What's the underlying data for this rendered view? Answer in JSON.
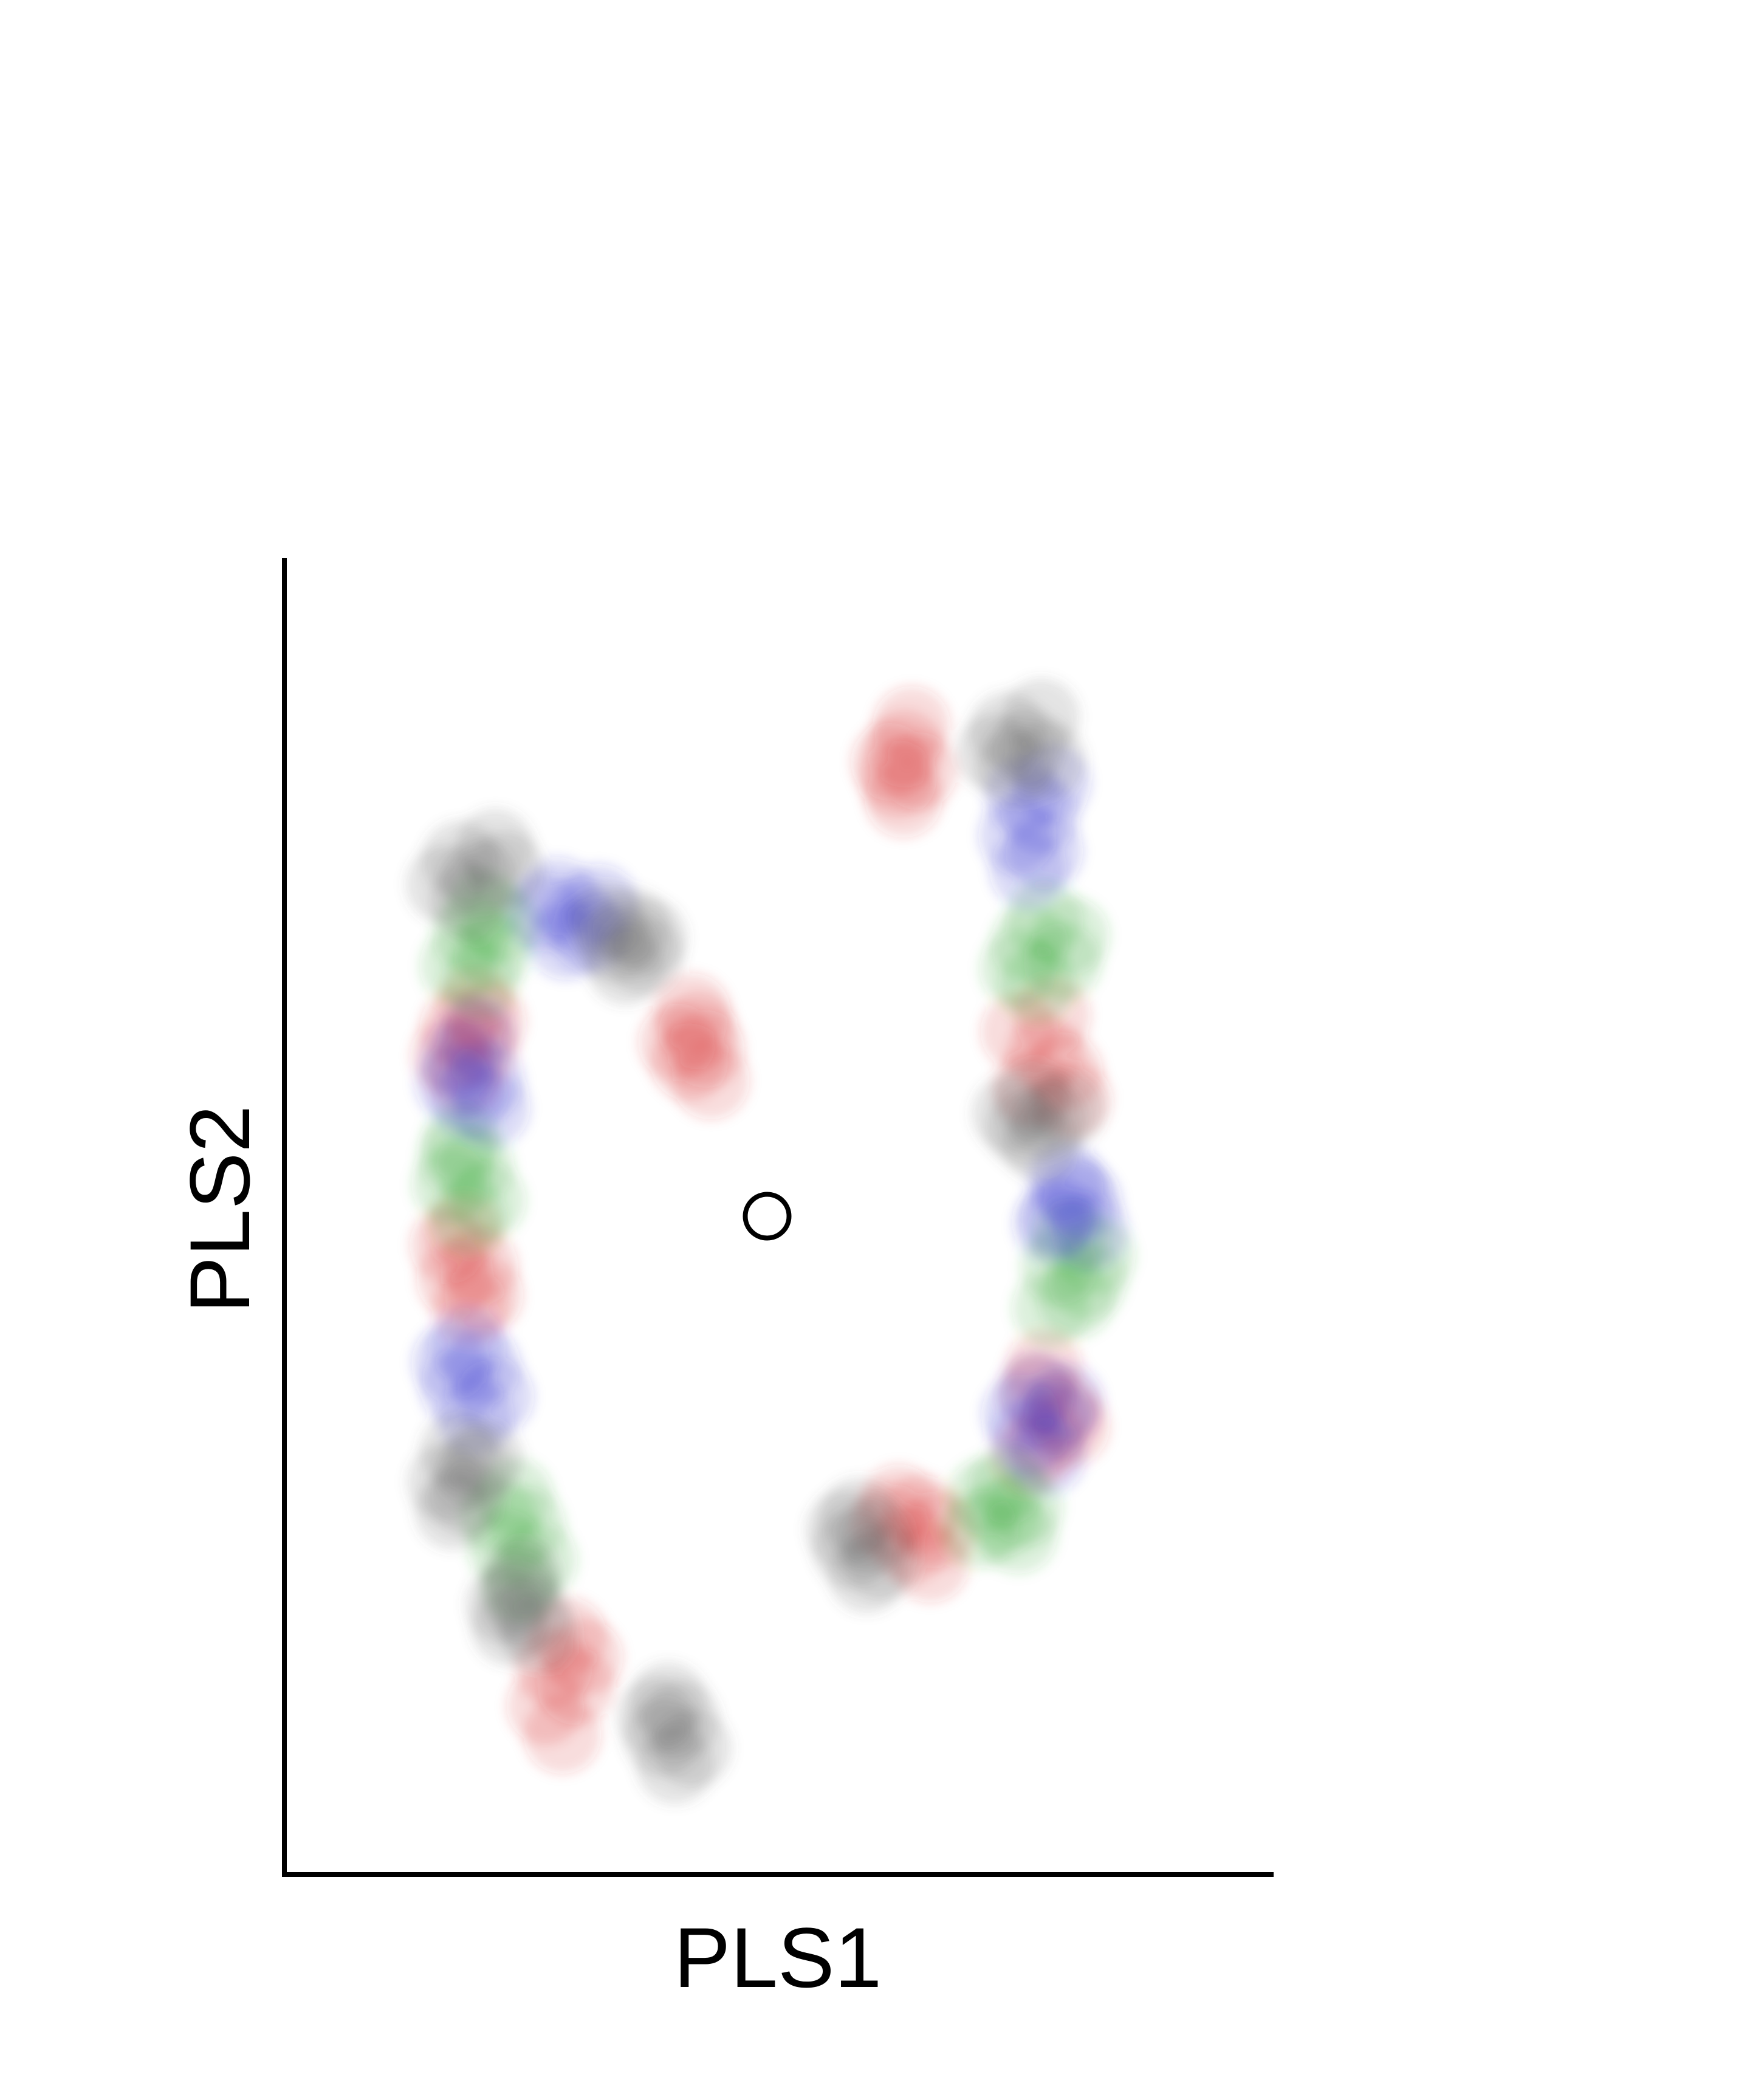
{
  "chart_data": {
    "type": "scatter",
    "title": "",
    "xlabel": "PLS1",
    "ylabel": "PLS2",
    "xlim": [
      0,
      1
    ],
    "ylim": [
      0,
      1
    ],
    "x_ticks_shown": false,
    "y_ticks_shown": false,
    "grid": false,
    "legend": "none",
    "point_opacity": 0.1,
    "series": [
      {
        "color": "#d62728",
        "points": [
          [
            0.627,
            0.855
          ],
          [
            0.634,
            0.873
          ],
          [
            0.62,
            0.832
          ],
          [
            0.612,
            0.845
          ],
          [
            0.641,
            0.838
          ],
          [
            0.626,
            0.817
          ],
          [
            0.418,
            0.641
          ],
          [
            0.426,
            0.627
          ],
          [
            0.409,
            0.617
          ],
          [
            0.431,
            0.603
          ],
          [
            0.412,
            0.655
          ],
          [
            0.397,
            0.632
          ],
          [
            0.193,
            0.66
          ],
          [
            0.176,
            0.643
          ],
          [
            0.197,
            0.628
          ],
          [
            0.183,
            0.607
          ],
          [
            0.167,
            0.622
          ],
          [
            0.205,
            0.648
          ],
          [
            0.181,
            0.488
          ],
          [
            0.197,
            0.462
          ],
          [
            0.188,
            0.431
          ],
          [
            0.173,
            0.452
          ],
          [
            0.166,
            0.478
          ],
          [
            0.202,
            0.44
          ],
          [
            0.287,
            0.181
          ],
          [
            0.272,
            0.157
          ],
          [
            0.295,
            0.143
          ],
          [
            0.264,
            0.128
          ],
          [
            0.281,
            0.106
          ],
          [
            0.303,
            0.165
          ],
          [
            0.743,
            0.64
          ],
          [
            0.769,
            0.623
          ],
          [
            0.788,
            0.61
          ],
          [
            0.755,
            0.598
          ],
          [
            0.776,
            0.652
          ],
          [
            0.797,
            0.589
          ],
          [
            0.761,
            0.366
          ],
          [
            0.787,
            0.352
          ],
          [
            0.771,
            0.331
          ],
          [
            0.753,
            0.318
          ],
          [
            0.795,
            0.34
          ],
          [
            0.768,
            0.384
          ],
          [
            0.621,
            0.282
          ],
          [
            0.644,
            0.274
          ],
          [
            0.661,
            0.262
          ],
          [
            0.633,
            0.251
          ],
          [
            0.653,
            0.236
          ],
          [
            0.612,
            0.268
          ]
        ]
      },
      {
        "color": "#2ca02c",
        "points": [
          [
            0.203,
            0.733
          ],
          [
            0.188,
            0.714
          ],
          [
            0.211,
            0.701
          ],
          [
            0.176,
            0.69
          ],
          [
            0.198,
            0.679
          ],
          [
            0.219,
            0.722
          ],
          [
            0.179,
            0.557
          ],
          [
            0.193,
            0.538
          ],
          [
            0.168,
            0.524
          ],
          [
            0.205,
            0.512
          ],
          [
            0.186,
            0.5
          ],
          [
            0.174,
            0.545
          ],
          [
            0.233,
            0.287
          ],
          [
            0.245,
            0.265
          ],
          [
            0.224,
            0.248
          ],
          [
            0.257,
            0.239
          ],
          [
            0.238,
            0.22
          ],
          [
            0.216,
            0.272
          ],
          [
            0.768,
            0.726
          ],
          [
            0.753,
            0.707
          ],
          [
            0.787,
            0.693
          ],
          [
            0.761,
            0.676
          ],
          [
            0.795,
            0.713
          ],
          [
            0.742,
            0.688
          ],
          [
            0.795,
            0.484
          ],
          [
            0.783,
            0.462
          ],
          [
            0.812,
            0.451
          ],
          [
            0.8,
            0.437
          ],
          [
            0.775,
            0.43
          ],
          [
            0.821,
            0.47
          ],
          [
            0.709,
            0.287
          ],
          [
            0.726,
            0.271
          ],
          [
            0.742,
            0.258
          ],
          [
            0.703,
            0.262
          ],
          [
            0.731,
            0.296
          ],
          [
            0.748,
            0.279
          ]
        ]
      },
      {
        "color": "#3333cc",
        "points": [
          [
            0.277,
            0.743
          ],
          [
            0.296,
            0.728
          ],
          [
            0.309,
            0.714
          ],
          [
            0.285,
            0.709
          ],
          [
            0.263,
            0.731
          ],
          [
            0.318,
            0.738
          ],
          [
            0.194,
            0.637
          ],
          [
            0.178,
            0.619
          ],
          [
            0.203,
            0.603
          ],
          [
            0.187,
            0.589
          ],
          [
            0.171,
            0.601
          ],
          [
            0.209,
            0.582
          ],
          [
            0.185,
            0.402
          ],
          [
            0.2,
            0.386
          ],
          [
            0.176,
            0.37
          ],
          [
            0.213,
            0.363
          ],
          [
            0.193,
            0.348
          ],
          [
            0.168,
            0.389
          ],
          [
            0.747,
            0.819
          ],
          [
            0.764,
            0.805
          ],
          [
            0.741,
            0.789
          ],
          [
            0.768,
            0.777
          ],
          [
            0.752,
            0.763
          ],
          [
            0.776,
            0.829
          ],
          [
            0.79,
            0.527
          ],
          [
            0.807,
            0.511
          ],
          [
            0.783,
            0.5
          ],
          [
            0.814,
            0.489
          ],
          [
            0.797,
            0.518
          ],
          [
            0.776,
            0.494
          ],
          [
            0.76,
            0.367
          ],
          [
            0.779,
            0.346
          ],
          [
            0.752,
            0.332
          ],
          [
            0.771,
            0.318
          ],
          [
            0.789,
            0.359
          ],
          [
            0.744,
            0.35
          ]
        ]
      },
      {
        "color": "#555555",
        "points": [
          [
            0.178,
            0.771
          ],
          [
            0.197,
            0.757
          ],
          [
            0.213,
            0.78
          ],
          [
            0.162,
            0.752
          ],
          [
            0.186,
            0.739
          ],
          [
            0.224,
            0.763
          ],
          [
            0.334,
            0.707
          ],
          [
            0.351,
            0.72
          ],
          [
            0.364,
            0.698
          ],
          [
            0.345,
            0.69
          ],
          [
            0.327,
            0.724
          ],
          [
            0.368,
            0.712
          ],
          [
            0.176,
            0.322
          ],
          [
            0.191,
            0.308
          ],
          [
            0.163,
            0.298
          ],
          [
            0.184,
            0.287
          ],
          [
            0.203,
            0.315
          ],
          [
            0.171,
            0.276
          ],
          [
            0.237,
            0.213
          ],
          [
            0.25,
            0.198
          ],
          [
            0.228,
            0.188
          ],
          [
            0.258,
            0.183
          ],
          [
            0.241,
            0.227
          ],
          [
            0.222,
            0.205
          ],
          [
            0.388,
            0.132
          ],
          [
            0.401,
            0.118
          ],
          [
            0.382,
            0.104
          ],
          [
            0.413,
            0.096
          ],
          [
            0.395,
            0.083
          ],
          [
            0.375,
            0.12
          ],
          [
            0.731,
            0.869
          ],
          [
            0.752,
            0.856
          ],
          [
            0.738,
            0.84
          ],
          [
            0.765,
            0.879
          ],
          [
            0.718,
            0.852
          ],
          [
            0.771,
            0.846
          ],
          [
            0.756,
            0.589
          ],
          [
            0.773,
            0.573
          ],
          [
            0.748,
            0.566
          ],
          [
            0.79,
            0.581
          ],
          [
            0.765,
            0.555
          ],
          [
            0.734,
            0.578
          ],
          [
            0.58,
            0.272
          ],
          [
            0.597,
            0.258
          ],
          [
            0.573,
            0.247
          ],
          [
            0.604,
            0.238
          ],
          [
            0.589,
            0.228
          ],
          [
            0.566,
            0.262
          ]
        ]
      },
      {
        "color": "#000000",
        "marker": "hollow",
        "points": [
          [
            0.488,
            0.5
          ]
        ]
      }
    ]
  }
}
